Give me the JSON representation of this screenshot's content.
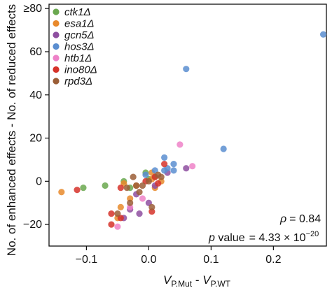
{
  "chart_data": {
    "type": "scatter",
    "xlabel": {
      "base": "V",
      "sub1": "P.Mut",
      "sep": " - ",
      "sub2": "P.WT"
    },
    "ylabel": "No. of enhanced effects - No. of reduced effects",
    "xlim": [
      -0.16,
      0.285
    ],
    "ylim": [
      -30,
      82
    ],
    "xticks": [
      -0.1,
      0.0,
      0.1,
      0.2
    ],
    "xtick_labels": [
      "−0.1",
      "0.0",
      "0.1",
      "0.2"
    ],
    "yticks": [
      -20,
      0,
      20,
      40,
      60,
      80
    ],
    "ytick_labels": [
      "−20",
      "0",
      "20",
      "40",
      "60",
      "≥80"
    ],
    "grid": false,
    "legend_position": "top-left",
    "annotations": {
      "rho_label": "ρ",
      "rho_value": "=  0.84",
      "p_label_italic": "p",
      "p_label_rest": " value",
      "p_value": "=  4.33 × 10",
      "p_exp": "−20"
    },
    "series": [
      {
        "name": "ctk1Δ",
        "color": "#6aa84f",
        "points": [
          [
            -0.105,
            -3
          ],
          [
            -0.07,
            -2
          ],
          [
            -0.03,
            -3
          ],
          [
            -0.005,
            4
          ],
          [
            0.0,
            1
          ],
          [
            -0.04,
            0
          ],
          [
            0.01,
            2
          ]
        ]
      },
      {
        "name": "esa1Δ",
        "color": "#e8892b",
        "points": [
          [
            -0.14,
            -5
          ],
          [
            -0.03,
            -8
          ],
          [
            -0.045,
            -12
          ],
          [
            -0.04,
            -1
          ],
          [
            -0.02,
            -2
          ],
          [
            0.005,
            1
          ],
          [
            0.005,
            4
          ],
          [
            0.01,
            -3
          ],
          [
            0.02,
            0
          ],
          [
            -0.05,
            -17
          ]
        ]
      },
      {
        "name": "gcn5Δ",
        "color": "#8e4fa0",
        "points": [
          [
            -0.04,
            -17
          ],
          [
            -0.03,
            -13
          ],
          [
            -0.02,
            -6
          ],
          [
            -0.015,
            -15
          ],
          [
            0.01,
            -2
          ],
          [
            0.03,
            4
          ],
          [
            0.06,
            6
          ],
          [
            0.0,
            -10
          ]
        ]
      },
      {
        "name": "hos3Δ",
        "color": "#5b8ed0",
        "points": [
          [
            0.28,
            68
          ],
          [
            0.06,
            52
          ],
          [
            0.12,
            15
          ],
          [
            0.025,
            11
          ],
          [
            0.04,
            8
          ],
          [
            0.04,
            5
          ],
          [
            0.025,
            5
          ],
          [
            -0.005,
            3
          ],
          [
            0.01,
            5
          ],
          [
            0.03,
            6
          ]
        ]
      },
      {
        "name": "htb1Δ",
        "color": "#ee82c8",
        "points": [
          [
            0.05,
            17
          ],
          [
            0.07,
            7
          ],
          [
            -0.05,
            -21
          ],
          [
            -0.03,
            -12
          ],
          [
            -0.01,
            -8
          ]
        ]
      },
      {
        "name": "ino80Δ",
        "color": "#d6332a",
        "points": [
          [
            -0.115,
            -4
          ],
          [
            -0.06,
            -15
          ],
          [
            -0.045,
            -17
          ],
          [
            -0.06,
            -20
          ],
          [
            0.005,
            -14
          ],
          [
            0.025,
            8
          ],
          [
            0.01,
            2
          ],
          [
            -0.005,
            0
          ],
          [
            0.015,
            -1
          ],
          [
            -0.045,
            -3
          ]
        ]
      },
      {
        "name": "rpd3Δ",
        "color": "#9b5e37",
        "points": [
          [
            -0.03,
            -10
          ],
          [
            -0.015,
            -5
          ],
          [
            -0.05,
            -15
          ],
          [
            -0.025,
            2
          ],
          [
            0.0,
            0
          ],
          [
            0.015,
            3
          ],
          [
            0.02,
            2
          ],
          [
            -0.02,
            -2
          ],
          [
            0.005,
            -12
          ],
          [
            -0.01,
            -2
          ],
          [
            -0.035,
            -3
          ]
        ]
      }
    ]
  }
}
